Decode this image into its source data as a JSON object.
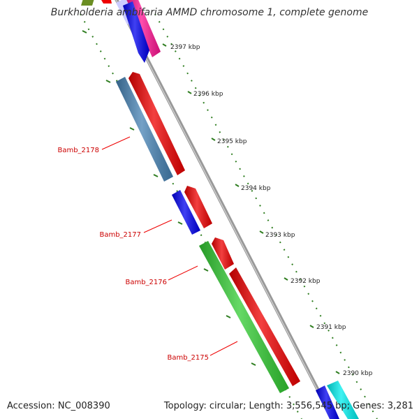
{
  "title": "Burkholderia ambifaria AMMD chromosome 1, complete genome",
  "accession": "Accession: NC_008390",
  "summary": "Topology: circular; Length: 3,556,545 bp; Genes: 3,281",
  "ticks": [
    {
      "label": "2397 kbp"
    },
    {
      "label": "2396 kbp"
    },
    {
      "label": "2395 kbp"
    },
    {
      "label": "2394 kbp"
    },
    {
      "label": "2393 kbp"
    },
    {
      "label": "2392 kbp"
    },
    {
      "label": "2391 kbp"
    },
    {
      "label": "2390 kbp"
    }
  ],
  "genes": [
    {
      "label": "Bamb_2178"
    },
    {
      "label": "Bamb_2177"
    },
    {
      "label": "Bamb_2176"
    },
    {
      "label": "Bamb_2175"
    }
  ],
  "colors": {
    "backbone": "#888888",
    "tick": "#2e7d1f",
    "label": "#cc0000",
    "red": "#ee0000",
    "blue": "#0000ee",
    "steelblue": "#4682b4",
    "green": "#33cc33",
    "magenta": "#ff1493",
    "lavender": "#ccccff",
    "cyan": "#00eeee",
    "olive": "#6b8e23"
  }
}
